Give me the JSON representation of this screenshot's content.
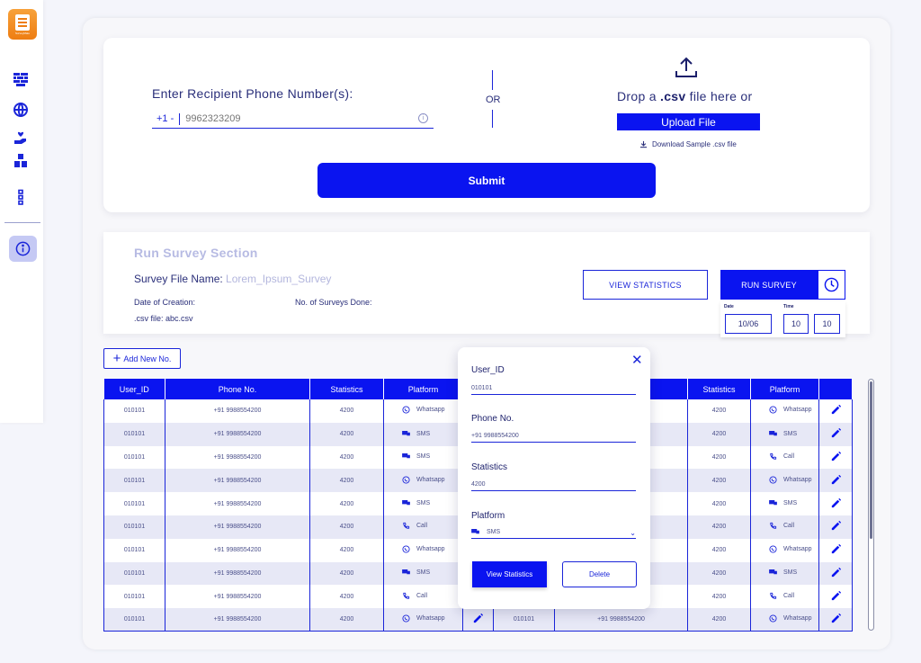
{
  "app": {
    "logo_text": "SurveyMate",
    "accent_color": "#0a14f0",
    "sidebar_icons": [
      "brick-wall-icon",
      "globe-icon",
      "hand-heart-icon",
      "boxes-icon",
      "more-dots-icon",
      "info-icon"
    ]
  },
  "recipient": {
    "label": "Enter Recipient Phone Number(s):",
    "prefix": "+1 -",
    "placeholder": "9962323209",
    "or": "OR",
    "drop_pre": "Drop a ",
    "drop_ext": ".csv",
    "drop_post": " file here or",
    "upload_label": "Upload File",
    "download_label": "Download Sample .csv file",
    "submit_label": "Submit"
  },
  "survey": {
    "title": "Run Survey Section",
    "file_name_label": "Survey File Name: ",
    "file_name_value": "Lorem_Ipsum_Survey",
    "creation_label": "Date of Creation:",
    "surveys_done_label": "No. of Surveys Done:",
    "csv_label": ".csv file:  abc.csv",
    "view_stats_label": "VIEW STATISTICS",
    "run_survey_label": "RUN SURVEY",
    "date_label": "Date",
    "time_label": "Time",
    "date_value": "10/06",
    "hour_value": "10",
    "minute_value": "10"
  },
  "table": {
    "add_new_label": "Add New No.",
    "headers": [
      "User_ID",
      "Phone No.",
      "Statistics",
      "Platform",
      "",
      "",
      "",
      "Statistics",
      "Platform",
      ""
    ],
    "rows": [
      {
        "id": "010101",
        "phone": "+91 9988554200",
        "stats": "4200",
        "platform": "Whatsapp",
        "r_id": "",
        "r_phone": "",
        "r_stats": "4200",
        "r_platform": "Whatsapp"
      },
      {
        "id": "010101",
        "phone": "+91 9988554200",
        "stats": "4200",
        "platform": "SMS",
        "r_id": "",
        "r_phone": "",
        "r_stats": "4200",
        "r_platform": "SMS"
      },
      {
        "id": "010101",
        "phone": "+91 9988554200",
        "stats": "4200",
        "platform": "SMS",
        "r_id": "",
        "r_phone": "",
        "r_stats": "4200",
        "r_platform": "Call"
      },
      {
        "id": "010101",
        "phone": "+91 9988554200",
        "stats": "4200",
        "platform": "Whatsapp",
        "r_id": "",
        "r_phone": "",
        "r_stats": "4200",
        "r_platform": "Whatsapp"
      },
      {
        "id": "010101",
        "phone": "+91 9988554200",
        "stats": "4200",
        "platform": "SMS",
        "r_id": "",
        "r_phone": "",
        "r_stats": "4200",
        "r_platform": "SMS"
      },
      {
        "id": "010101",
        "phone": "+91 9988554200",
        "stats": "4200",
        "platform": "Call",
        "r_id": "",
        "r_phone": "",
        "r_stats": "4200",
        "r_platform": "Call"
      },
      {
        "id": "010101",
        "phone": "+91 9988554200",
        "stats": "4200",
        "platform": "Whatsapp",
        "r_id": "",
        "r_phone": "",
        "r_stats": "4200",
        "r_platform": "Whatsapp"
      },
      {
        "id": "010101",
        "phone": "+91 9988554200",
        "stats": "4200",
        "platform": "SMS",
        "r_id": "",
        "r_phone": "",
        "r_stats": "4200",
        "r_platform": "SMS"
      },
      {
        "id": "010101",
        "phone": "+91 9988554200",
        "stats": "4200",
        "platform": "Call",
        "r_id": "",
        "r_phone": "",
        "r_stats": "4200",
        "r_platform": "Call"
      },
      {
        "id": "010101",
        "phone": "+91 9988554200",
        "stats": "4200",
        "platform": "Whatsapp",
        "r_id": "010101",
        "r_phone": "+91 9988554200",
        "r_stats": "4200",
        "r_platform": "Whatsapp"
      }
    ]
  },
  "modal": {
    "user_id_label": "User_ID",
    "user_id_value": "010101",
    "phone_label": "Phone No.",
    "phone_value": "+91 9988554200",
    "stats_label": "Statistics",
    "stats_value": "4200",
    "platform_label": "Platform",
    "platform_value": "SMS",
    "view_stats_label": "View Statistics",
    "delete_label": "Delete"
  }
}
